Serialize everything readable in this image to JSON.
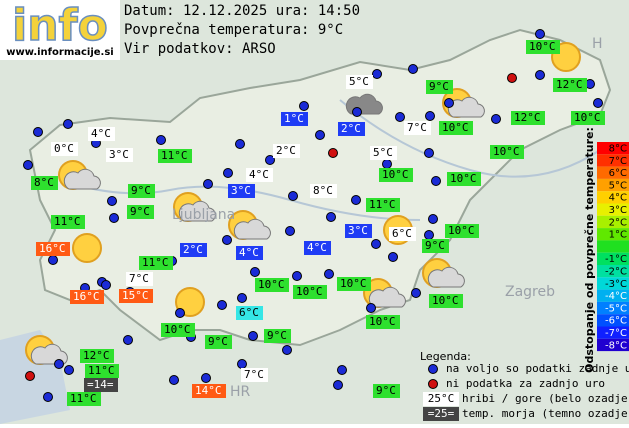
{
  "header": {
    "logo": "info",
    "site": "www.informacije.si",
    "date_line": "Datum: 12.12.2025 ura: 14:50",
    "avg_line": "Povprečna temperatura: 9°C",
    "source_line": "Vir podatkov: ARSO"
  },
  "places": [
    "Ljubljana",
    "Zagreb",
    "HR",
    "H"
  ],
  "styles": {
    "green": {
      "bg": "#2ee02e",
      "fg": "#000"
    },
    "white": {
      "bg": "#ffffff",
      "fg": "#000"
    },
    "blue": {
      "bg": "#1f3cf5",
      "fg": "#fff"
    },
    "orange": {
      "bg": "#ff5a14",
      "fg": "#fff"
    },
    "cyan": {
      "bg": "#35e6e6",
      "fg": "#000"
    },
    "dark": {
      "bg": "#444444",
      "fg": "#fff"
    }
  },
  "stations": [
    {
      "text": "10°C",
      "style": "green"
    },
    {
      "text": "12°C",
      "style": "green"
    },
    {
      "text": "12°C",
      "style": "green"
    },
    {
      "text": "10°C",
      "style": "green"
    },
    {
      "text": "9°C",
      "style": "green"
    },
    {
      "text": "10°C",
      "style": "green"
    },
    {
      "text": "10°C",
      "style": "green"
    },
    {
      "text": "5°C",
      "style": "white"
    },
    {
      "text": "1°C",
      "style": "blue"
    },
    {
      "text": "2°C",
      "style": "blue"
    },
    {
      "text": "7°C",
      "style": "white"
    },
    {
      "text": "5°C",
      "style": "white"
    },
    {
      "text": "4°C",
      "style": "white"
    },
    {
      "text": "0°C",
      "style": "white"
    },
    {
      "text": "3°C",
      "style": "white"
    },
    {
      "text": "11°C",
      "style": "green"
    },
    {
      "text": "2°C",
      "style": "white"
    },
    {
      "text": "8°C",
      "style": "green"
    },
    {
      "text": "10°C",
      "style": "green"
    },
    {
      "text": "10°C",
      "style": "green"
    },
    {
      "text": "4°C",
      "style": "white"
    },
    {
      "text": "9°C",
      "style": "green"
    },
    {
      "text": "3°C",
      "style": "blue"
    },
    {
      "text": "8°C",
      "style": "white"
    },
    {
      "text": "9°C",
      "style": "green"
    },
    {
      "text": "11°C",
      "style": "green"
    },
    {
      "text": "11°C",
      "style": "green"
    },
    {
      "text": "10°C",
      "style": "green"
    },
    {
      "text": "3°C",
      "style": "blue"
    },
    {
      "text": "6°C",
      "style": "white"
    },
    {
      "text": "9°C",
      "style": "green"
    },
    {
      "text": "16°C",
      "style": "orange"
    },
    {
      "text": "2°C",
      "style": "blue"
    },
    {
      "text": "4°C",
      "style": "blue"
    },
    {
      "text": "4°C",
      "style": "blue"
    },
    {
      "text": "11°C",
      "style": "green"
    },
    {
      "text": "7°C",
      "style": "white"
    },
    {
      "text": "10°C",
      "style": "green"
    },
    {
      "text": "10°C",
      "style": "green"
    },
    {
      "text": "10°C",
      "style": "green"
    },
    {
      "text": "16°C",
      "style": "orange"
    },
    {
      "text": "15°C",
      "style": "orange"
    },
    {
      "text": "10°C",
      "style": "green"
    },
    {
      "text": "6°C",
      "style": "cyan"
    },
    {
      "text": "10°C",
      "style": "green"
    },
    {
      "text": "10°C",
      "style": "green"
    },
    {
      "text": "9°C",
      "style": "green"
    },
    {
      "text": "9°C",
      "style": "green"
    },
    {
      "text": "12°C",
      "style": "green"
    },
    {
      "text": "11°C",
      "style": "green"
    },
    {
      "text": "=14=",
      "style": "dark"
    },
    {
      "text": "7°C",
      "style": "white"
    },
    {
      "text": "14°C",
      "style": "orange"
    },
    {
      "text": "9°C",
      "style": "green"
    },
    {
      "text": "11°C",
      "style": "green"
    }
  ],
  "legend": {
    "title": "Legenda:",
    "available": "na voljo so podatki zadnje ure",
    "missing": "ni podatka za zadnjo uro",
    "mountain_sample": "25°C",
    "mountain_text": "hribi / gore (belo ozadje)",
    "sea_sample": "=25=",
    "sea_text": "temp. morja (temno ozadje)"
  },
  "scale": {
    "title": "Odstopanje od povprečne temperature:",
    "steps": [
      {
        "label": "8°C",
        "color": "#ff0000"
      },
      {
        "label": "7°C",
        "color": "#ff3000"
      },
      {
        "label": "6°C",
        "color": "#ff6a00"
      },
      {
        "label": "5°C",
        "color": "#ffa000"
      },
      {
        "label": "4°C",
        "color": "#ffd000"
      },
      {
        "label": "3°C",
        "color": "#e8f000"
      },
      {
        "label": "2°C",
        "color": "#a8f000"
      },
      {
        "label": "1°C",
        "color": "#60e800"
      },
      {
        "color": "#20e020"
      },
      {
        "label": "-1°C",
        "color": "#00e060"
      },
      {
        "label": "-2°C",
        "color": "#00e0a0"
      },
      {
        "label": "-3°C",
        "color": "#00d8d8"
      },
      {
        "label": "-4°C",
        "color": "#00b0f0"
      },
      {
        "label": "-5°C",
        "color": "#0080ff"
      },
      {
        "label": "-6°C",
        "color": "#0050ff"
      },
      {
        "label": "-7°C",
        "color": "#1020ff"
      },
      {
        "label": "-8°C",
        "color": "#2000d0"
      }
    ]
  }
}
